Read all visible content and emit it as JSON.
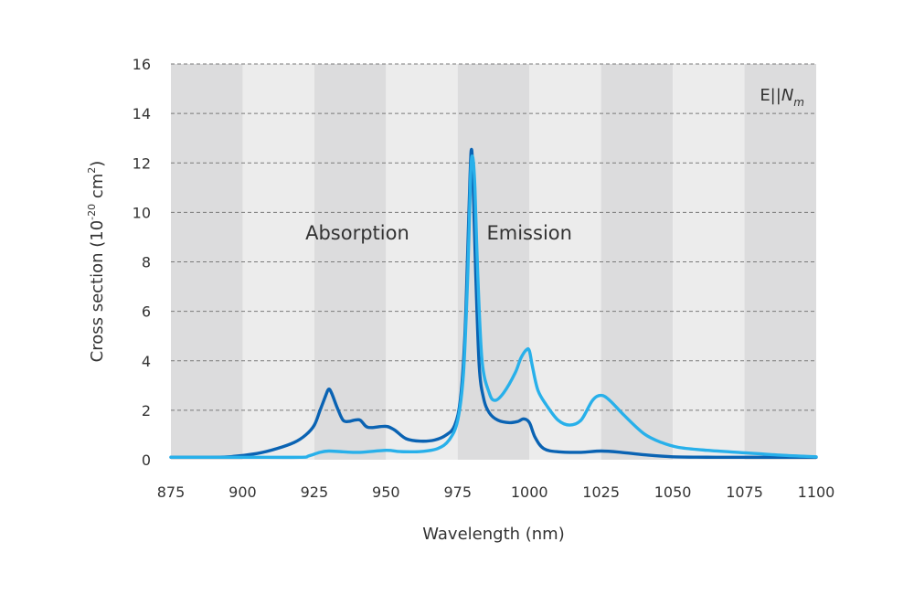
{
  "chart_data": {
    "type": "line",
    "xlabel": "Wavelength (nm)",
    "ylabel": {
      "prefix": "Cross section (10",
      "exponent": "-20",
      "middle": " cm",
      "unit_exponent": "2",
      "suffix": ")"
    },
    "xlim": [
      875,
      1100
    ],
    "ylim": [
      0,
      16
    ],
    "x_ticks": [
      "875",
      "900",
      "925",
      "950",
      "975",
      "1000",
      "1025",
      "1050",
      "1075",
      "1100"
    ],
    "y_ticks": [
      "0",
      "2",
      "4",
      "6",
      "8",
      "10",
      "12",
      "14",
      "16"
    ],
    "grid": "horizontal dashed",
    "background_bands": "alternating dark/light every 25 nm",
    "annotation": {
      "base": "E||",
      "italic": "N",
      "subscript": "m"
    },
    "series": [
      {
        "name": "Absorption",
        "color": "#0a63b3",
        "points": [
          [
            875,
            0.1
          ],
          [
            885,
            0.1
          ],
          [
            895,
            0.12
          ],
          [
            905,
            0.25
          ],
          [
            912,
            0.45
          ],
          [
            918,
            0.7
          ],
          [
            922,
            1.0
          ],
          [
            925,
            1.4
          ],
          [
            927,
            2.0
          ],
          [
            929,
            2.6
          ],
          [
            930,
            2.85
          ],
          [
            931,
            2.7
          ],
          [
            933,
            2.1
          ],
          [
            935,
            1.6
          ],
          [
            937,
            1.55
          ],
          [
            939,
            1.6
          ],
          [
            941,
            1.6
          ],
          [
            943,
            1.35
          ],
          [
            945,
            1.3
          ],
          [
            950,
            1.35
          ],
          [
            953,
            1.2
          ],
          [
            957,
            0.85
          ],
          [
            962,
            0.75
          ],
          [
            967,
            0.8
          ],
          [
            971,
            1.0
          ],
          [
            974,
            1.4
          ],
          [
            976,
            2.5
          ],
          [
            977.5,
            5.0
          ],
          [
            978.5,
            8.5
          ],
          [
            979.3,
            11.5
          ],
          [
            979.8,
            12.55
          ],
          [
            980.3,
            11.5
          ],
          [
            981.3,
            7.5
          ],
          [
            982.5,
            3.8
          ],
          [
            984,
            2.5
          ],
          [
            986,
            1.9
          ],
          [
            989,
            1.6
          ],
          [
            993,
            1.5
          ],
          [
            996,
            1.55
          ],
          [
            998,
            1.65
          ],
          [
            1000,
            1.5
          ],
          [
            1002,
            0.9
          ],
          [
            1005,
            0.45
          ],
          [
            1010,
            0.32
          ],
          [
            1018,
            0.3
          ],
          [
            1025,
            0.35
          ],
          [
            1032,
            0.3
          ],
          [
            1040,
            0.2
          ],
          [
            1050,
            0.12
          ],
          [
            1065,
            0.1
          ],
          [
            1080,
            0.1
          ],
          [
            1100,
            0.1
          ]
        ]
      },
      {
        "name": "Emission",
        "color": "#28b0ea",
        "points": [
          [
            875,
            0.1
          ],
          [
            900,
            0.1
          ],
          [
            920,
            0.1
          ],
          [
            923,
            0.15
          ],
          [
            927,
            0.3
          ],
          [
            930,
            0.35
          ],
          [
            935,
            0.32
          ],
          [
            941,
            0.3
          ],
          [
            950,
            0.38
          ],
          [
            955,
            0.33
          ],
          [
            962,
            0.33
          ],
          [
            968,
            0.45
          ],
          [
            972,
            0.8
          ],
          [
            975,
            1.6
          ],
          [
            977,
            3.5
          ],
          [
            978.5,
            7.5
          ],
          [
            979.5,
            11.5
          ],
          [
            980.2,
            12.25
          ],
          [
            981,
            11.0
          ],
          [
            982,
            7.5
          ],
          [
            983.5,
            4.0
          ],
          [
            986,
            2.7
          ],
          [
            988,
            2.4
          ],
          [
            991,
            2.7
          ],
          [
            995,
            3.5
          ],
          [
            997,
            4.1
          ],
          [
            999,
            4.45
          ],
          [
            1000,
            4.4
          ],
          [
            1001,
            3.8
          ],
          [
            1003,
            2.8
          ],
          [
            1006,
            2.2
          ],
          [
            1010,
            1.6
          ],
          [
            1014,
            1.4
          ],
          [
            1018,
            1.6
          ],
          [
            1022,
            2.4
          ],
          [
            1025,
            2.6
          ],
          [
            1028,
            2.4
          ],
          [
            1033,
            1.8
          ],
          [
            1040,
            1.05
          ],
          [
            1046,
            0.7
          ],
          [
            1052,
            0.5
          ],
          [
            1062,
            0.38
          ],
          [
            1075,
            0.28
          ],
          [
            1088,
            0.18
          ],
          [
            1100,
            0.12
          ]
        ]
      }
    ],
    "series_labels": [
      {
        "text": "Absorption",
        "x": 940,
        "y": 8.9
      },
      {
        "text": "Emission",
        "x": 1000,
        "y": 8.9
      }
    ]
  }
}
